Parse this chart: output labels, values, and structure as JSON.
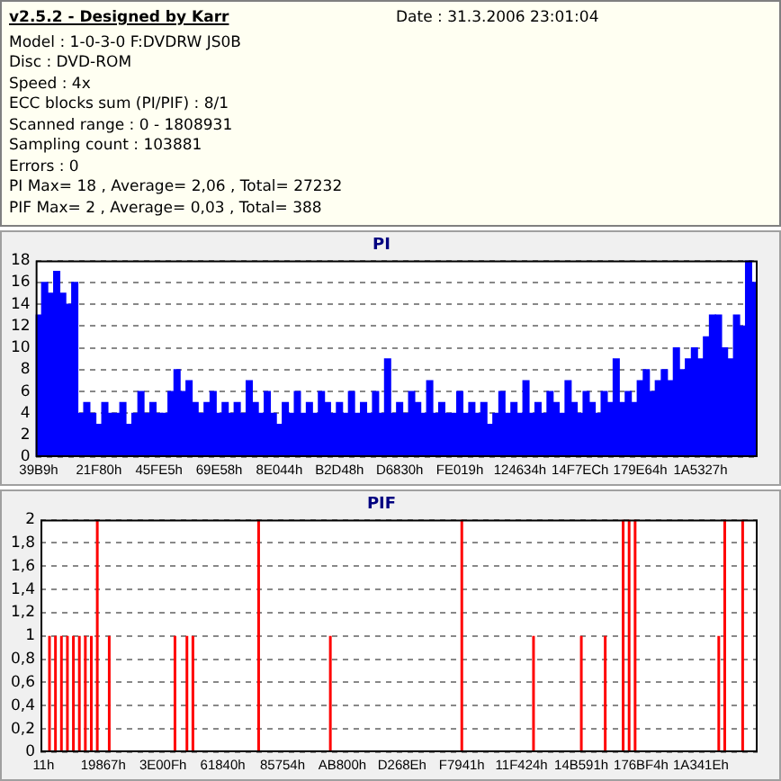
{
  "chart_data": [
    {
      "type": "other",
      "title": "v2.5.2 - Designed by Karr",
      "annotations": [
        "Date : 31.3.2006 23:01:04",
        "Model : 1-0-3-0 F:DVDRW JS0B",
        "Disc : DVD-ROM",
        "Speed : 4x",
        "ECC blocks sum (PI/PIF) : 8/1",
        "Scanned range : 0 - 1808931",
        "Sampling count : 103881",
        "Errors : 0",
        "PI Max= 18 , Average= 2,06 , Total= 27232",
        "PIF Max= 2 , Average= 0,03 , Total= 388"
      ]
    },
    {
      "type": "bar",
      "title": "PI",
      "color": "#0000ff",
      "grid": "y",
      "ylim": [
        0,
        18
      ],
      "yticks": [
        0,
        2,
        4,
        6,
        8,
        10,
        12,
        14,
        16,
        18
      ],
      "categories": [
        "39B9h",
        null,
        null,
        null,
        null,
        null,
        null,
        null,
        null,
        null,
        "21F80h",
        null,
        null,
        null,
        null,
        null,
        null,
        null,
        null,
        null,
        "45FE5h",
        null,
        null,
        null,
        null,
        null,
        null,
        null,
        null,
        null,
        "69E58h",
        null,
        null,
        null,
        null,
        null,
        null,
        null,
        null,
        null,
        "8E044h",
        null,
        null,
        null,
        null,
        null,
        null,
        null,
        null,
        null,
        "B2D48h",
        null,
        null,
        null,
        null,
        null,
        null,
        null,
        null,
        null,
        "D6830h",
        null,
        null,
        null,
        null,
        null,
        null,
        null,
        null,
        null,
        "FE019h",
        null,
        null,
        null,
        null,
        null,
        null,
        null,
        null,
        null,
        "124634h",
        null,
        null,
        null,
        null,
        null,
        null,
        null,
        null,
        null,
        "14F7ECh",
        null,
        null,
        null,
        null,
        null,
        null,
        null,
        null,
        null,
        "179E64h",
        null,
        null,
        null,
        null,
        null,
        null,
        null,
        null,
        null,
        "1A5327h",
        null,
        null,
        null,
        null,
        null,
        null,
        null,
        null,
        null
      ],
      "values": [
        13,
        16,
        15,
        17,
        15,
        14,
        16,
        4,
        5,
        4,
        3,
        5,
        4,
        4,
        5,
        3,
        4,
        6,
        4,
        5,
        4,
        4,
        6,
        8,
        6,
        7,
        5,
        4,
        5,
        6,
        4,
        5,
        4,
        5,
        4,
        7,
        5,
        4,
        6,
        4,
        3,
        5,
        4,
        6,
        4,
        5,
        4,
        6,
        5,
        4,
        5,
        4,
        6,
        4,
        5,
        4,
        6,
        4,
        9,
        4,
        5,
        4,
        6,
        5,
        4,
        7,
        4,
        5,
        4,
        4,
        6,
        4,
        5,
        4,
        5,
        3,
        4,
        6,
        4,
        5,
        4,
        7,
        4,
        5,
        4,
        6,
        5,
        4,
        7,
        5,
        4,
        6,
        5,
        4,
        6,
        5,
        9,
        5,
        6,
        5,
        7,
        8,
        6,
        7,
        8,
        7,
        10,
        8,
        9,
        10,
        9,
        11,
        13,
        13,
        10,
        9,
        13,
        12,
        18,
        16
      ]
    },
    {
      "type": "bar",
      "title": "PIF",
      "color": "#ff0000",
      "grid": "y",
      "ylim": [
        0,
        2
      ],
      "yticks": [
        0,
        {
          "value": 0.2,
          "label": "0,2"
        },
        {
          "value": 0.4,
          "label": "0,4"
        },
        {
          "value": 0.6,
          "label": "0,6"
        },
        {
          "value": 0.8,
          "label": "0,8"
        },
        1,
        {
          "value": 1.2,
          "label": "1,2"
        },
        {
          "value": 1.4,
          "label": "1,4"
        },
        {
          "value": 1.6,
          "label": "1,6"
        },
        {
          "value": 1.8,
          "label": "1,8"
        },
        2
      ],
      "categories": [
        "11h",
        null,
        null,
        null,
        null,
        null,
        null,
        null,
        null,
        null,
        "19867h",
        null,
        null,
        null,
        null,
        null,
        null,
        null,
        null,
        null,
        "3E00Fh",
        null,
        null,
        null,
        null,
        null,
        null,
        null,
        null,
        null,
        "61840h",
        null,
        null,
        null,
        null,
        null,
        null,
        null,
        null,
        null,
        "85754h",
        null,
        null,
        null,
        null,
        null,
        null,
        null,
        null,
        null,
        "AB800h",
        null,
        null,
        null,
        null,
        null,
        null,
        null,
        null,
        null,
        "D268Eh",
        null,
        null,
        null,
        null,
        null,
        null,
        null,
        null,
        null,
        "F7941h",
        null,
        null,
        null,
        null,
        null,
        null,
        null,
        null,
        null,
        "11F424h",
        null,
        null,
        null,
        null,
        null,
        null,
        null,
        null,
        null,
        "14B591h",
        null,
        null,
        null,
        null,
        null,
        null,
        null,
        null,
        null,
        "176BF4h",
        null,
        null,
        null,
        null,
        null,
        null,
        null,
        null,
        null,
        "1A341Eh",
        null,
        null,
        null,
        null,
        null,
        null,
        null,
        null,
        null
      ],
      "values": [
        0,
        1,
        1,
        1,
        1,
        1,
        1,
        1,
        1,
        2,
        0,
        1,
        0,
        0,
        0,
        0,
        0,
        0,
        0,
        0,
        0,
        0,
        1,
        0,
        1,
        1,
        0,
        0,
        0,
        0,
        0,
        0,
        0,
        0,
        0,
        0,
        2,
        0,
        0,
        0,
        0,
        0,
        0,
        0,
        0,
        0,
        0,
        0,
        1,
        0,
        0,
        0,
        0,
        0,
        0,
        0,
        0,
        0,
        0,
        0,
        0,
        0,
        0,
        0,
        0,
        0,
        0,
        0,
        0,
        0,
        2,
        0,
        0,
        0,
        0,
        0,
        0,
        0,
        0,
        0,
        0,
        0,
        1,
        0,
        0,
        0,
        0,
        0,
        0,
        0,
        1,
        0,
        0,
        0,
        1,
        0,
        0,
        2,
        2,
        2,
        0,
        0,
        0,
        0,
        0,
        0,
        0,
        0,
        0,
        0,
        0,
        0,
        0,
        1,
        2,
        0,
        0,
        2,
        0,
        0
      ]
    }
  ]
}
